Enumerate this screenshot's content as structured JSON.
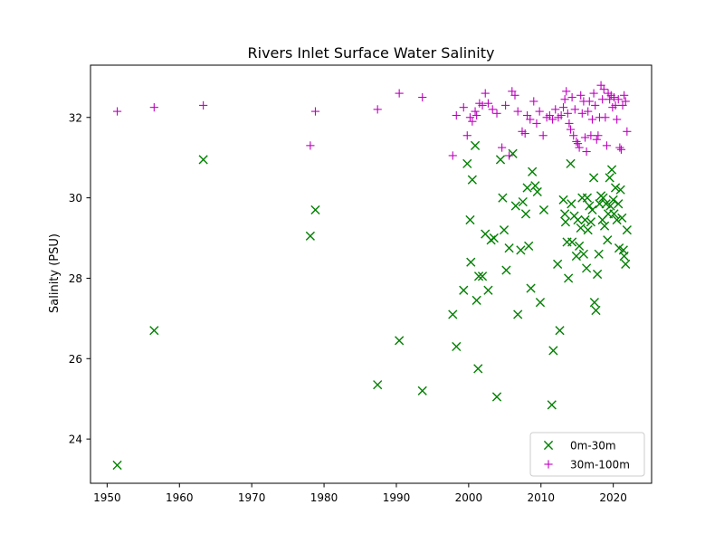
{
  "chart_data": {
    "type": "scatter",
    "title": "Rivers Inlet Surface Water Salinity",
    "xlabel": "",
    "ylabel": "Salinity (PSU)",
    "xlim": [
      1947.7,
      2025.3
    ],
    "ylim": [
      22.9,
      33.3
    ],
    "xticks": [
      1950,
      1960,
      1970,
      1980,
      1990,
      2000,
      2010,
      2020
    ],
    "yticks": [
      24,
      26,
      28,
      30,
      32
    ],
    "grid": false,
    "legend_position": "lower-right",
    "series": [
      {
        "name": "0m-30m",
        "marker": "x",
        "color": "#008000",
        "x": [
          1951.4,
          1956.5,
          1963.3,
          1978.1,
          1978.8,
          1987.4,
          1990.4,
          1993.6,
          1997.8,
          1998.3,
          1999.3,
          1999.8,
          2000.2,
          2000.3,
          2000.5,
          2000.9,
          2001.1,
          2001.3,
          2001.4,
          2001.9,
          2002.3,
          2002.7,
          2003.1,
          2003.5,
          2003.9,
          2004.4,
          2004.7,
          2004.9,
          2005.2,
          2005.6,
          2006.1,
          2006.5,
          2006.8,
          2007.2,
          2007.5,
          2007.9,
          2008.1,
          2008.3,
          2008.6,
          2008.8,
          2009.2,
          2009.5,
          2009.9,
          2010.4,
          2011.5,
          2011.7,
          2012.3,
          2012.6,
          2013.1,
          2013.3,
          2013.4,
          2013.6,
          2013.8,
          2014.1,
          2014.2,
          2014.3,
          2014.6,
          2014.9,
          2015.1,
          2015.3,
          2015.5,
          2015.7,
          2015.9,
          2016.1,
          2016.3,
          2016.4,
          2016.5,
          2016.7,
          2016.9,
          2017.1,
          2017.3,
          2017.4,
          2017.6,
          2017.8,
          2018.0,
          2018.1,
          2018.3,
          2018.5,
          2018.6,
          2018.8,
          2019.0,
          2019.2,
          2019.3,
          2019.5,
          2019.6,
          2019.8,
          2020.0,
          2020.1,
          2020.3,
          2020.5,
          2020.7,
          2020.8,
          2021.0,
          2021.2,
          2021.4,
          2021.5,
          2021.7,
          2021.9
        ],
        "y": [
          23.35,
          26.7,
          30.95,
          29.05,
          29.7,
          25.35,
          26.45,
          25.2,
          27.1,
          26.3,
          27.7,
          30.85,
          29.45,
          28.4,
          30.45,
          31.3,
          27.45,
          25.75,
          28.05,
          28.05,
          29.1,
          27.7,
          28.95,
          29.0,
          25.05,
          30.95,
          30.0,
          29.2,
          28.2,
          28.75,
          31.1,
          29.8,
          27.1,
          28.7,
          29.9,
          29.6,
          30.25,
          28.8,
          27.75,
          30.65,
          30.3,
          30.15,
          27.4,
          29.7,
          24.85,
          26.2,
          28.35,
          26.7,
          29.95,
          29.6,
          29.4,
          28.9,
          28.0,
          30.85,
          29.85,
          28.9,
          29.55,
          28.55,
          29.45,
          28.8,
          29.25,
          30.0,
          28.6,
          29.45,
          28.25,
          30.0,
          29.2,
          29.8,
          29.4,
          29.7,
          30.5,
          27.4,
          27.2,
          28.1,
          28.6,
          29.85,
          30.05,
          29.45,
          30.0,
          29.3,
          29.85,
          28.95,
          29.6,
          30.5,
          29.8,
          30.7,
          29.95,
          29.6,
          30.25,
          29.45,
          29.85,
          28.75,
          30.2,
          29.5,
          28.7,
          28.55,
          28.35,
          29.2
        ]
      },
      {
        "name": "30m-100m",
        "marker": "+",
        "color": "#bf00bf",
        "x": [
          1951.4,
          1956.5,
          1963.3,
          1978.1,
          1978.8,
          1987.4,
          1990.4,
          1993.6,
          1997.8,
          1998.3,
          1999.3,
          1999.8,
          2000.2,
          2000.5,
          2000.9,
          2001.1,
          2001.5,
          2001.9,
          2002.3,
          2002.7,
          2003.3,
          2003.9,
          2004.6,
          2005.1,
          2005.6,
          2006.0,
          2006.4,
          2006.8,
          2007.4,
          2007.8,
          2008.1,
          2008.5,
          2009.0,
          2009.4,
          2009.8,
          2010.3,
          2010.8,
          2011.2,
          2011.6,
          2012.0,
          2012.4,
          2012.8,
          2013.1,
          2013.3,
          2013.5,
          2013.7,
          2013.9,
          2014.1,
          2014.3,
          2014.5,
          2014.7,
          2014.9,
          2015.1,
          2015.3,
          2015.5,
          2015.7,
          2015.9,
          2016.1,
          2016.3,
          2016.5,
          2016.7,
          2016.9,
          2017.1,
          2017.3,
          2017.5,
          2017.7,
          2017.9,
          2018.1,
          2018.3,
          2018.5,
          2018.7,
          2018.9,
          2019.1,
          2019.3,
          2019.5,
          2019.7,
          2019.9,
          2020.1,
          2020.3,
          2020.5,
          2020.7,
          2020.9,
          2021.1,
          2021.3,
          2021.5,
          2021.7,
          2021.9
        ],
        "y": [
          32.15,
          32.25,
          32.3,
          31.3,
          32.15,
          32.2,
          32.6,
          32.5,
          31.05,
          32.05,
          32.25,
          31.55,
          32.0,
          31.9,
          32.15,
          32.05,
          32.35,
          32.3,
          32.6,
          32.35,
          32.2,
          32.1,
          31.25,
          32.3,
          31.05,
          32.65,
          32.55,
          32.15,
          31.65,
          31.6,
          32.05,
          31.95,
          32.4,
          31.85,
          32.15,
          31.55,
          32.0,
          32.05,
          31.95,
          32.2,
          32.0,
          32.05,
          32.25,
          32.45,
          32.65,
          32.1,
          31.85,
          31.7,
          32.5,
          31.55,
          32.2,
          31.4,
          31.35,
          31.25,
          32.55,
          32.1,
          32.4,
          31.5,
          31.15,
          32.15,
          32.4,
          31.55,
          31.95,
          32.6,
          32.3,
          31.45,
          31.55,
          32.0,
          32.8,
          32.45,
          32.7,
          32.0,
          31.3,
          32.6,
          32.45,
          32.55,
          32.25,
          32.5,
          32.3,
          31.95,
          32.45,
          31.25,
          31.2,
          32.3,
          32.55,
          32.4,
          31.65
        ]
      }
    ]
  }
}
